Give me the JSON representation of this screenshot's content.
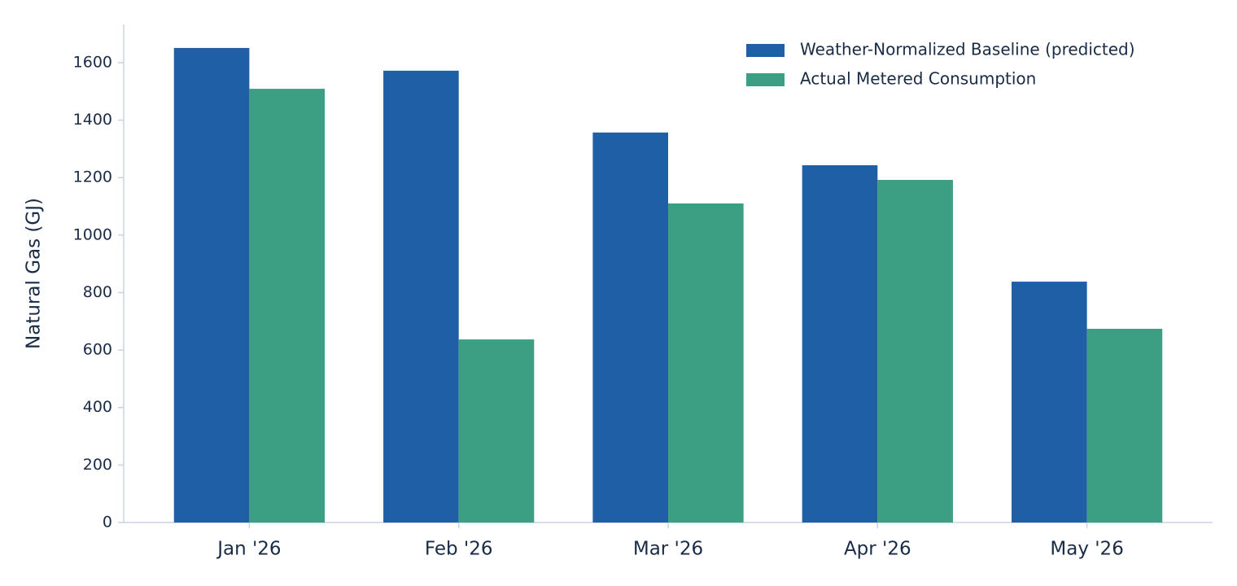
{
  "chart_data": {
    "type": "bar",
    "y_label": "Natural Gas (GJ)",
    "categories": [
      "Jan '26",
      "Feb '26",
      "Mar '26",
      "Apr '26",
      "May '26"
    ],
    "series": [
      {
        "name": "Weather-Normalized Baseline (predicted)",
        "color": "#1f5fa6",
        "values": [
          1651,
          1572,
          1357,
          1243,
          838
        ]
      },
      {
        "name": "Actual Metered Consumption",
        "color": "#3c9e82",
        "values": [
          1509,
          637,
          1110,
          1192,
          674
        ]
      }
    ],
    "ylim": [
      0,
      1733
    ],
    "yticks": [
      0,
      200,
      400,
      600,
      800,
      1000,
      1200,
      1400,
      1600
    ],
    "grid": false,
    "legend": "upper right"
  }
}
